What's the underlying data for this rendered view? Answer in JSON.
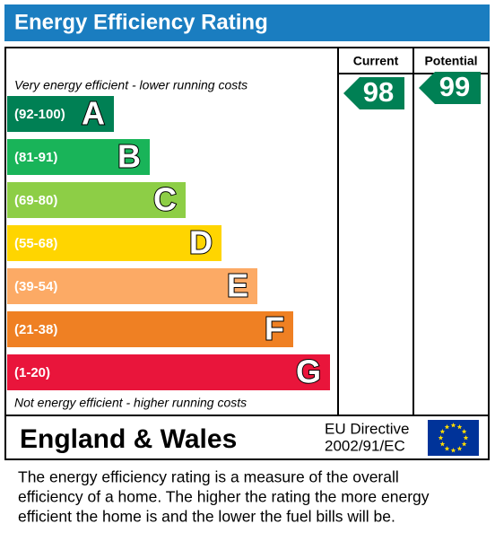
{
  "header": {
    "title": "Energy Efficiency Rating"
  },
  "columns": {
    "current": "Current",
    "potential": "Potential"
  },
  "top_label": "Very energy efficient - lower running costs",
  "bottom_label": "Not energy efficient - higher running costs",
  "bands": [
    {
      "range": "(92-100)",
      "letter": "A"
    },
    {
      "range": "(81-91)",
      "letter": "B"
    },
    {
      "range": "(69-80)",
      "letter": "C"
    },
    {
      "range": "(55-68)",
      "letter": "D"
    },
    {
      "range": "(39-54)",
      "letter": "E"
    },
    {
      "range": "(21-38)",
      "letter": "F"
    },
    {
      "range": "(1-20)",
      "letter": "G"
    }
  ],
  "ratings": {
    "current": "98",
    "potential": "99"
  },
  "footer": {
    "region": "England & Wales",
    "directive": [
      "EU Directive",
      "2002/91/EC"
    ]
  },
  "description": [
    "The energy efficiency rating is a measure of the overall",
    "efficiency of a home.  The higher the rating the more energy",
    "efficient the home is and the lower the fuel bills will be."
  ]
}
